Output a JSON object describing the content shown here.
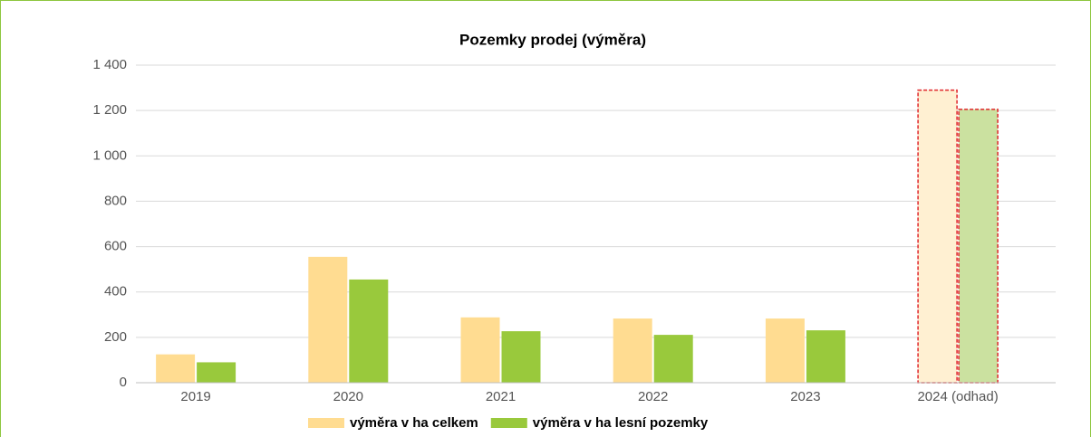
{
  "chart_data": {
    "type": "bar",
    "title": "Pozemky prodej (výměra)",
    "categories": [
      "2019",
      "2020",
      "2021",
      "2022",
      "2023",
      "2024 (odhad)"
    ],
    "series": [
      {
        "name": "výměra v ha celkem",
        "color": "#ffdc91",
        "values": [
          125,
          555,
          288,
          283,
          283,
          1290
        ],
        "colors": [
          "#ffdc91",
          "#ffdc91",
          "#ffdc91",
          "#ffdc91",
          "#ffdc91",
          "#fff0d2"
        ],
        "edgecolors": [
          null,
          null,
          null,
          null,
          null,
          "#e0262b"
        ]
      },
      {
        "name": "výměra v ha lesní pozemky",
        "color": "#99c93c",
        "values": [
          90,
          455,
          227,
          211,
          231,
          1205
        ],
        "colors": [
          "#99c93c",
          "#99c93c",
          "#99c93c",
          "#99c93c",
          "#99c93c",
          "#cbe1a0"
        ],
        "edgecolors": [
          null,
          null,
          null,
          null,
          null,
          "#e0262b"
        ]
      }
    ],
    "ylim": [
      0,
      1400
    ],
    "yticks": [
      0,
      200,
      400,
      600,
      800,
      {
        "value": 1000,
        "label": "1 000"
      },
      {
        "value": 1200,
        "label": "1 200"
      },
      {
        "value": 1400,
        "label": "1 400"
      }
    ],
    "grid": true,
    "legend": "bottom"
  }
}
